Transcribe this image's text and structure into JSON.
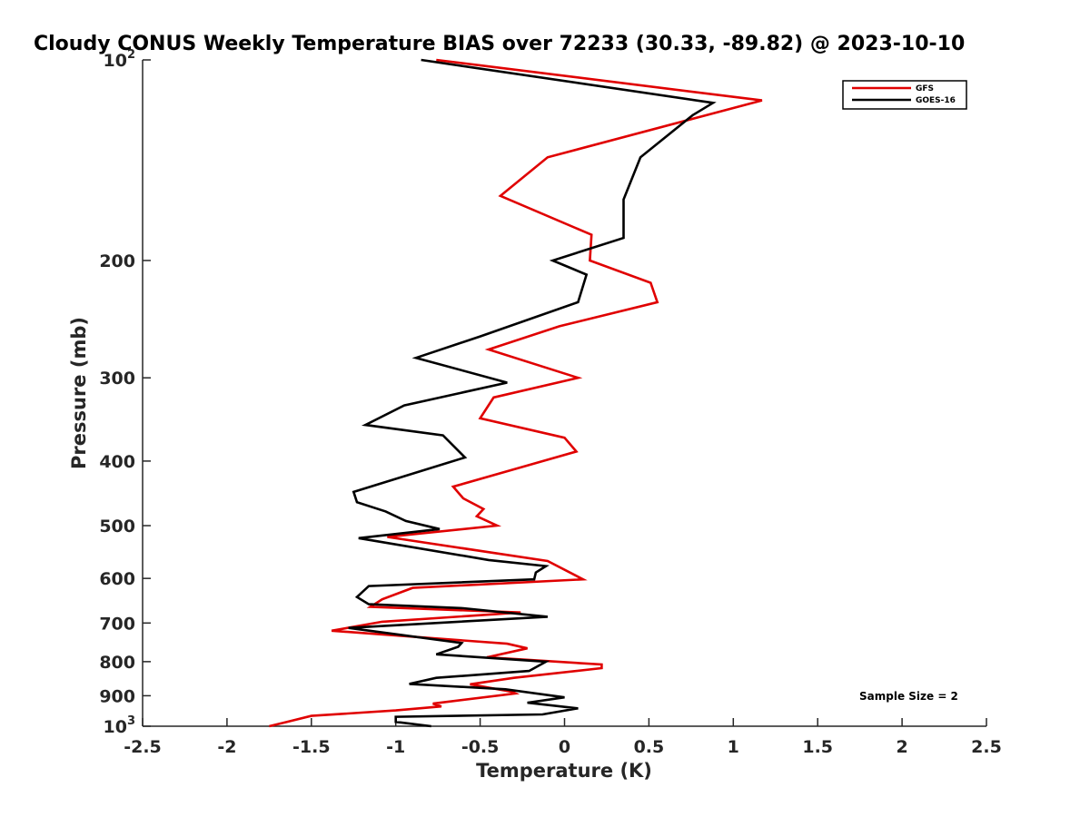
{
  "chart_data": {
    "type": "line",
    "title": "Cloudy CONUS Weekly Temperature BIAS over 72233 (30.33, -89.82) @ 2023-10-10",
    "xlabel": "Temperature (K)",
    "ylabel": "Pressure (mb)",
    "xlim": [
      -2.5,
      2.5
    ],
    "ylim": [
      100,
      1000
    ],
    "yscale": "log",
    "yreversed": true,
    "xticks": [
      -2.5,
      -2,
      -1.5,
      -1,
      -0.5,
      0,
      0.5,
      1,
      1.5,
      2,
      2.5
    ],
    "xtick_labels": [
      "-2.5",
      "-2",
      "-1.5",
      "-1",
      "-0.5",
      "0",
      "0.5",
      "1",
      "1.5",
      "2",
      "2.5"
    ],
    "yticks": [
      100,
      200,
      300,
      400,
      500,
      600,
      700,
      800,
      900,
      1000
    ],
    "ytick_labels": [
      {
        "base": "10",
        "exp": "2"
      },
      {
        "base": "200",
        "exp": ""
      },
      {
        "base": "300",
        "exp": ""
      },
      {
        "base": "400",
        "exp": ""
      },
      {
        "base": "500",
        "exp": ""
      },
      {
        "base": "600",
        "exp": ""
      },
      {
        "base": "700",
        "exp": ""
      },
      {
        "base": "800",
        "exp": ""
      },
      {
        "base": "900",
        "exp": ""
      },
      {
        "base": "10",
        "exp": "3"
      }
    ],
    "grid": false,
    "legend_position": "top-right",
    "annotation": "Sample Size = 2",
    "series": [
      {
        "name": "GFS",
        "color": "#e00000",
        "points": [
          [
            -0.76,
            100
          ],
          [
            1.17,
            115
          ],
          [
            -0.1,
            140
          ],
          [
            -0.38,
            160
          ],
          [
            0.16,
            183
          ],
          [
            0.15,
            200
          ],
          [
            0.51,
            216
          ],
          [
            0.55,
            231
          ],
          [
            -0.03,
            251
          ],
          [
            -0.45,
            272
          ],
          [
            0.08,
            300
          ],
          [
            -0.42,
            321
          ],
          [
            -0.5,
            345
          ],
          [
            0.0,
            369
          ],
          [
            0.07,
            387
          ],
          [
            -0.66,
            437
          ],
          [
            -0.6,
            455
          ],
          [
            -0.48,
            472
          ],
          [
            -0.52,
            484
          ],
          [
            -0.4,
            500
          ],
          [
            -1.05,
            520
          ],
          [
            -0.1,
            565
          ],
          [
            0.11,
            602
          ],
          [
            -0.9,
            620
          ],
          [
            -1.08,
            645
          ],
          [
            -1.15,
            662
          ],
          [
            -0.26,
            675
          ],
          [
            -1.08,
            697
          ],
          [
            -1.38,
            719
          ],
          [
            -0.34,
            752
          ],
          [
            -0.22,
            764
          ],
          [
            -0.46,
            788
          ],
          [
            0.22,
            808
          ],
          [
            0.22,
            818
          ],
          [
            -0.3,
            846
          ],
          [
            -0.56,
            865
          ],
          [
            -0.31,
            888
          ],
          [
            -0.29,
            893
          ],
          [
            -0.78,
            925
          ],
          [
            -0.73,
            934
          ],
          [
            -1.0,
            947
          ],
          [
            -1.5,
            965
          ],
          [
            -1.65,
            986
          ],
          [
            -1.75,
            1000
          ]
        ]
      },
      {
        "name": "GOES-16",
        "color": "#000000",
        "points": [
          [
            -0.85,
            100
          ],
          [
            0.88,
            116
          ],
          [
            0.76,
            121
          ],
          [
            0.45,
            140
          ],
          [
            0.35,
            162
          ],
          [
            0.35,
            185
          ],
          [
            -0.07,
            200
          ],
          [
            0.13,
            210
          ],
          [
            0.08,
            231
          ],
          [
            -0.5,
            260
          ],
          [
            -0.88,
            280
          ],
          [
            -0.34,
            305
          ],
          [
            -0.95,
            330
          ],
          [
            -1.18,
            353
          ],
          [
            -0.72,
            366
          ],
          [
            -0.59,
            395
          ],
          [
            -1.25,
            445
          ],
          [
            -1.23,
            461
          ],
          [
            -1.06,
            476
          ],
          [
            -0.94,
            492
          ],
          [
            -0.74,
            506
          ],
          [
            -1.22,
            522
          ],
          [
            -0.45,
            563
          ],
          [
            -0.11,
            575
          ],
          [
            -0.17,
            588
          ],
          [
            -0.18,
            602
          ],
          [
            -1.16,
            616
          ],
          [
            -1.23,
            640
          ],
          [
            -1.16,
            656
          ],
          [
            -0.6,
            665
          ],
          [
            -0.1,
            685
          ],
          [
            -1.28,
            712
          ],
          [
            -0.61,
            750
          ],
          [
            -0.63,
            760
          ],
          [
            -0.76,
            780
          ],
          [
            -0.11,
            800
          ],
          [
            -0.21,
            826
          ],
          [
            -0.76,
            846
          ],
          [
            -0.92,
            864
          ],
          [
            -0.35,
            880
          ],
          [
            0.0,
            905
          ],
          [
            -0.22,
            922
          ],
          [
            0.08,
            940
          ],
          [
            -0.13,
            960
          ],
          [
            -1.0,
            968
          ],
          [
            -1.0,
            985
          ],
          [
            -0.79,
            1000
          ]
        ]
      }
    ]
  }
}
